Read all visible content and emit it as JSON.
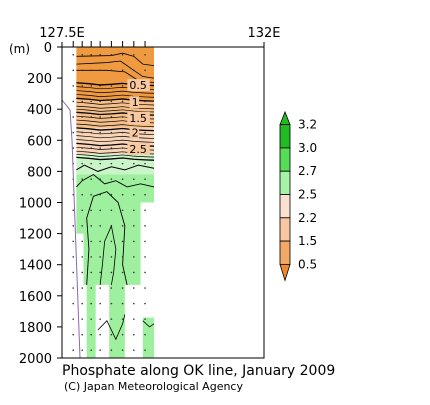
{
  "chart_data": {
    "type": "heatmap",
    "title": "Phosphate along OK line, January 2009",
    "credit": "(C) Japan Meteorological Agency",
    "x_axis": {
      "ticks": [
        {
          "value": 127.5,
          "label": "127.5E"
        },
        {
          "value": 132,
          "label": "132E"
        }
      ],
      "range": [
        127.5,
        132
      ]
    },
    "y_axis": {
      "unit": "(m)",
      "ticks": [
        0,
        200,
        400,
        600,
        800,
        1000,
        1200,
        1400,
        1600,
        1800,
        2000
      ],
      "range": [
        0,
        2000
      ],
      "inverted": true
    },
    "station_longitudes": [
      127.75,
      127.95,
      128.15,
      128.35,
      128.6,
      128.85,
      129.1,
      129.35
    ],
    "contour_labels": [
      {
        "text": "0.5",
        "lon": 129.0,
        "depth": 245
      },
      {
        "text": "1",
        "lon": 129.05,
        "depth": 355
      },
      {
        "text": "1.5",
        "lon": 129.0,
        "depth": 455
      },
      {
        "text": "2",
        "lon": 129.05,
        "depth": 550
      },
      {
        "text": "2.5",
        "lon": 129.0,
        "depth": 655
      }
    ],
    "colorbar": {
      "levels": [
        "3.2",
        "3.0",
        "2.7",
        "2.5",
        "2.2",
        "1.5",
        "0.5"
      ],
      "colors": [
        "#22bb22",
        "#55dd55",
        "#a6f2a6",
        "#fbe0cf",
        "#f8c7a2",
        "#f2a866",
        "#f08a30"
      ]
    },
    "colors": {
      "orange": "#ef9a40",
      "light_orange": "#f6bf8a",
      "peach": "#f9d5b8",
      "pale_green": "#c9f5c9",
      "green": "#9ef09e",
      "bottom_line": "#8a6aa8"
    }
  }
}
